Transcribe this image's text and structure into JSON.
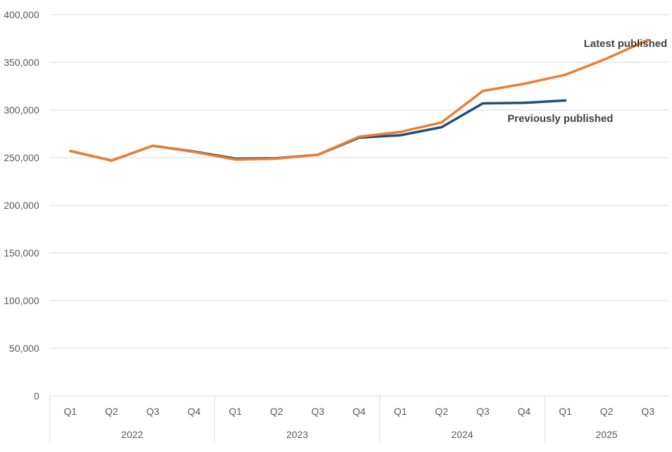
{
  "chart_data": {
    "type": "line",
    "title": "",
    "xlabel": "",
    "ylabel": "",
    "ylim": [
      0,
      400000
    ],
    "y_ticks": [
      0,
      50000,
      100000,
      150000,
      200000,
      250000,
      300000,
      350000,
      400000
    ],
    "y_tick_labels": [
      "0",
      "50,000",
      "100,000",
      "150,000",
      "200,000",
      "250,000",
      "300,000",
      "350,000",
      "400,000"
    ],
    "grid": true,
    "categories": [
      "Q1",
      "Q2",
      "Q3",
      "Q4",
      "Q1",
      "Q2",
      "Q3",
      "Q4",
      "Q1",
      "Q2",
      "Q3",
      "Q4",
      "Q1",
      "Q2",
      "Q3"
    ],
    "groups": [
      {
        "label": "2022",
        "count": 4
      },
      {
        "label": "2023",
        "count": 4
      },
      {
        "label": "2024",
        "count": 4
      },
      {
        "label": "2025",
        "count": 3
      }
    ],
    "series": [
      {
        "name": "Previously published",
        "color": "#1f4e79",
        "values": [
          257000,
          247000,
          262500,
          256500,
          249000,
          249500,
          253000,
          271000,
          273500,
          282000,
          307000,
          307500,
          310000,
          null,
          null
        ]
      },
      {
        "name": "Latest published",
        "color": "#ed7d31",
        "values": [
          257000,
          247000,
          262500,
          256000,
          248000,
          249000,
          253000,
          272000,
          277000,
          287000,
          320000,
          327500,
          337000,
          354000,
          373500
        ]
      }
    ],
    "annotations": [
      "Latest published",
      "Previously published"
    ]
  }
}
